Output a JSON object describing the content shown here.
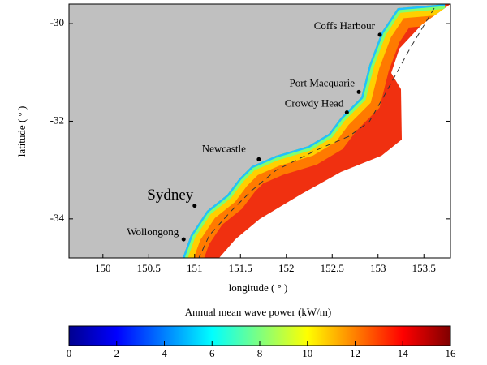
{
  "map": {
    "xlabel": "longitude ( ° )",
    "ylabel": "latitude ( ° )",
    "xlim": [
      149.63,
      153.79
    ],
    "ylim": [
      -34.8,
      -29.6
    ],
    "xticks": [
      150,
      150.5,
      151,
      151.5,
      152,
      152.5,
      153,
      153.5
    ],
    "yticks": [
      -30,
      -32,
      -34
    ],
    "places": [
      {
        "name": "Coffs Harbour",
        "lon": 153.02,
        "lat": -30.23
      },
      {
        "name": "Port Macquarie",
        "lon": 152.79,
        "lat": -31.4
      },
      {
        "name": "Crowdy Head",
        "lon": 152.66,
        "lat": -31.82
      },
      {
        "name": "Newcastle",
        "lon": 151.7,
        "lat": -32.78
      },
      {
        "name": "Sydney",
        "lon": 151.0,
        "lat": -33.73
      },
      {
        "name": "Wollongong",
        "lon": 150.88,
        "lat": -34.42
      }
    ]
  },
  "colorbar": {
    "title": "Annual mean wave power (kW/m)",
    "lim": [
      0,
      16
    ],
    "ticks": [
      0,
      2,
      4,
      6,
      8,
      10,
      12,
      14,
      16
    ]
  }
}
